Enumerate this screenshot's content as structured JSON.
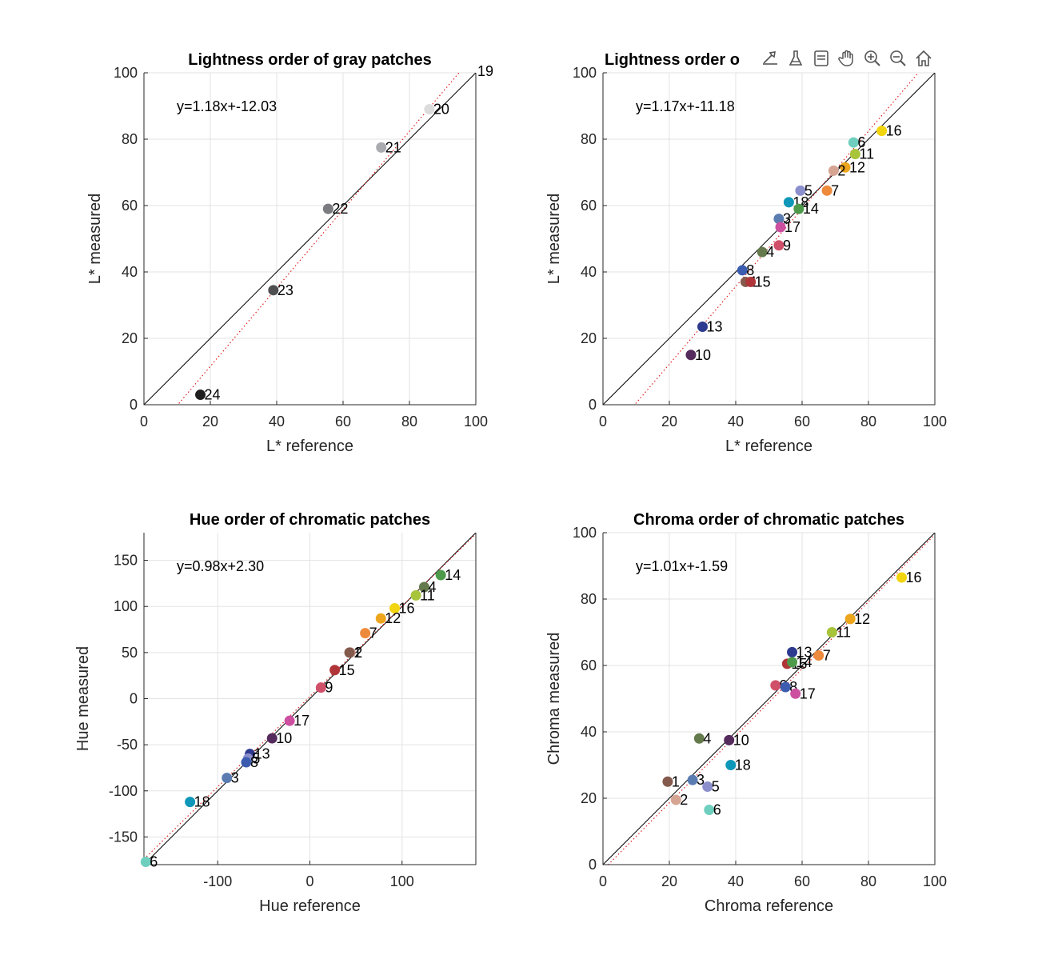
{
  "toolbar": {
    "icons": [
      "export-icon",
      "brush-icon",
      "datatip-icon",
      "pan-icon",
      "zoom-in-icon",
      "zoom-out-icon",
      "home-icon"
    ]
  },
  "chart_data": [
    {
      "type": "scatter",
      "title": "Lightness order of gray patches",
      "xlabel": "L* reference",
      "ylabel": "L* measured",
      "xlim": [
        0,
        100
      ],
      "ylim": [
        0,
        100
      ],
      "xticks": [
        0,
        20,
        40,
        60,
        80,
        100
      ],
      "yticks": [
        0,
        20,
        40,
        60,
        80,
        100
      ],
      "grid": true,
      "equation": "y=1.18x+-12.03",
      "fit": {
        "slope": 1.18,
        "intercept": -12.03
      },
      "identity_line": true,
      "points": [
        {
          "label": "19",
          "x": 101.5,
          "y": 105,
          "color": "#f4f4f4"
        },
        {
          "label": "20",
          "x": 86,
          "y": 89,
          "color": "#dcdcdc"
        },
        {
          "label": "21",
          "x": 71.5,
          "y": 77.5,
          "color": "#a9abb0"
        },
        {
          "label": "22",
          "x": 55.5,
          "y": 59,
          "color": "#7b7c7f"
        },
        {
          "label": "23",
          "x": 39,
          "y": 34.5,
          "color": "#4f4f51"
        },
        {
          "label": "24",
          "x": 17,
          "y": 3,
          "color": "#1e1e1e"
        }
      ]
    },
    {
      "type": "scatter",
      "title": "Lightness order o",
      "xlabel": "L* reference",
      "ylabel": "L* measured",
      "xlim": [
        0,
        100
      ],
      "ylim": [
        0,
        100
      ],
      "xticks": [
        0,
        20,
        40,
        60,
        80,
        100
      ],
      "yticks": [
        0,
        20,
        40,
        60,
        80,
        100
      ],
      "grid": true,
      "equation": "y=1.17x+-11.18",
      "fit": {
        "slope": 1.17,
        "intercept": -11.18
      },
      "identity_line": true,
      "points": [
        {
          "label": "16",
          "x": 84,
          "y": 82.5,
          "color": "#f2d40f"
        },
        {
          "label": "6",
          "x": 75.5,
          "y": 79,
          "color": "#6fcfbf"
        },
        {
          "label": "11",
          "x": 76,
          "y": 75.5,
          "color": "#a8c43a"
        },
        {
          "label": "12",
          "x": 73,
          "y": 71.5,
          "color": "#eca51c"
        },
        {
          "label": "2",
          "x": 69.5,
          "y": 70.5,
          "color": "#d5a492"
        },
        {
          "label": "5",
          "x": 59.5,
          "y": 64.5,
          "color": "#8b8fcc"
        },
        {
          "label": "7",
          "x": 67.5,
          "y": 64.5,
          "color": "#ee8a3c"
        },
        {
          "label": "18",
          "x": 56,
          "y": 61,
          "color": "#0e97b8"
        },
        {
          "label": "14",
          "x": 59,
          "y": 59,
          "color": "#4d9a4a"
        },
        {
          "label": "3",
          "x": 53,
          "y": 56,
          "color": "#5b7cb0"
        },
        {
          "label": "17",
          "x": 53.5,
          "y": 53.5,
          "color": "#cc4fa0"
        },
        {
          "label": "9",
          "x": 53,
          "y": 48,
          "color": "#d0506a"
        },
        {
          "label": "4",
          "x": 48,
          "y": 46,
          "color": "#647a4c"
        },
        {
          "label": "8",
          "x": 42,
          "y": 40.5,
          "color": "#3c5cb0"
        },
        {
          "label": "1",
          "x": 43,
          "y": 37,
          "color": "#845a4c"
        },
        {
          "label": "15",
          "x": 44.5,
          "y": 37,
          "color": "#b03538"
        },
        {
          "label": "13",
          "x": 30,
          "y": 23.5,
          "color": "#2e3a90"
        },
        {
          "label": "10",
          "x": 26.5,
          "y": 15,
          "color": "#552a5c"
        }
      ]
    },
    {
      "type": "scatter",
      "title": "Hue order of chromatic patches",
      "xlabel": "Hue reference",
      "ylabel": "Hue measured",
      "xlim": [
        -180,
        180
      ],
      "ylim": [
        -180,
        180
      ],
      "xticks": [
        -100,
        0,
        100
      ],
      "yticks": [
        -150,
        -100,
        -50,
        0,
        50,
        100,
        150
      ],
      "grid": true,
      "equation": "y=0.98x+2.30",
      "fit": {
        "slope": 0.98,
        "intercept": 2.3
      },
      "identity_line": true,
      "points": [
        {
          "label": "14",
          "x": 142,
          "y": 134,
          "color": "#4d9a4a"
        },
        {
          "label": "4",
          "x": 124,
          "y": 121,
          "color": "#647a4c"
        },
        {
          "label": "11",
          "x": 115,
          "y": 112,
          "color": "#a8c43a"
        },
        {
          "label": "16",
          "x": 92,
          "y": 98,
          "color": "#f2d40f"
        },
        {
          "label": "12",
          "x": 77,
          "y": 87,
          "color": "#eca51c"
        },
        {
          "label": "7",
          "x": 60,
          "y": 71,
          "color": "#ee8a3c"
        },
        {
          "label": "2",
          "x": 44,
          "y": 50,
          "color": "#d5a492"
        },
        {
          "label": "1",
          "x": 43,
          "y": 50,
          "color": "#845a4c"
        },
        {
          "label": "15",
          "x": 27,
          "y": 31,
          "color": "#b03538"
        },
        {
          "label": "9",
          "x": 12,
          "y": 12,
          "color": "#d0506a"
        },
        {
          "label": "17",
          "x": -22,
          "y": -24,
          "color": "#cc4fa0"
        },
        {
          "label": "10",
          "x": -41,
          "y": -43,
          "color": "#552a5c"
        },
        {
          "label": "13",
          "x": -65,
          "y": -60,
          "color": "#2e3a90"
        },
        {
          "label": "5",
          "x": -67,
          "y": -65,
          "color": "#8b8fcc"
        },
        {
          "label": "8",
          "x": -69,
          "y": -69,
          "color": "#3c5cb0"
        },
        {
          "label": "3",
          "x": -90,
          "y": -86,
          "color": "#5b7cb0"
        },
        {
          "label": "18",
          "x": -130,
          "y": -112,
          "color": "#0e97b8"
        },
        {
          "label": "6",
          "x": -178,
          "y": -177,
          "color": "#6fcfbf"
        }
      ]
    },
    {
      "type": "scatter",
      "title": "Chroma order of chromatic patches",
      "xlabel": "Chroma reference",
      "ylabel": "Chroma measured",
      "xlim": [
        0,
        100
      ],
      "ylim": [
        0,
        100
      ],
      "xticks": [
        0,
        20,
        40,
        60,
        80,
        100
      ],
      "yticks": [
        0,
        20,
        40,
        60,
        80,
        100
      ],
      "grid": true,
      "equation": "y=1.01x+-1.59",
      "fit": {
        "slope": 1.01,
        "intercept": -1.59
      },
      "identity_line": true,
      "points": [
        {
          "label": "16",
          "x": 90,
          "y": 86.5,
          "color": "#f2d40f"
        },
        {
          "label": "12",
          "x": 74.5,
          "y": 74,
          "color": "#eca51c"
        },
        {
          "label": "11",
          "x": 69,
          "y": 70,
          "color": "#a8c43a"
        },
        {
          "label": "13",
          "x": 57,
          "y": 64,
          "color": "#2e3a90"
        },
        {
          "label": "7",
          "x": 65,
          "y": 63,
          "color": "#ee8a3c"
        },
        {
          "label": "15",
          "x": 55.5,
          "y": 60.5,
          "color": "#b03538"
        },
        {
          "label": "14",
          "x": 57,
          "y": 61,
          "color": "#4d9a4a"
        },
        {
          "label": "9",
          "x": 52,
          "y": 54,
          "color": "#d0506a"
        },
        {
          "label": "8",
          "x": 55,
          "y": 53.5,
          "color": "#3c5cb0"
        },
        {
          "label": "17",
          "x": 58,
          "y": 51.5,
          "color": "#cc4fa0"
        },
        {
          "label": "4",
          "x": 29,
          "y": 38,
          "color": "#647a4c"
        },
        {
          "label": "10",
          "x": 38,
          "y": 37.5,
          "color": "#552a5c"
        },
        {
          "label": "18",
          "x": 38.5,
          "y": 30,
          "color": "#0e97b8"
        },
        {
          "label": "1",
          "x": 19.5,
          "y": 25,
          "color": "#845a4c"
        },
        {
          "label": "3",
          "x": 27,
          "y": 25.5,
          "color": "#5b7cb0"
        },
        {
          "label": "5",
          "x": 31.5,
          "y": 23.5,
          "color": "#8b8fcc"
        },
        {
          "label": "2",
          "x": 22,
          "y": 19.5,
          "color": "#d5a492"
        },
        {
          "label": "6",
          "x": 32,
          "y": 16.5,
          "color": "#6fcfbf"
        }
      ]
    }
  ]
}
